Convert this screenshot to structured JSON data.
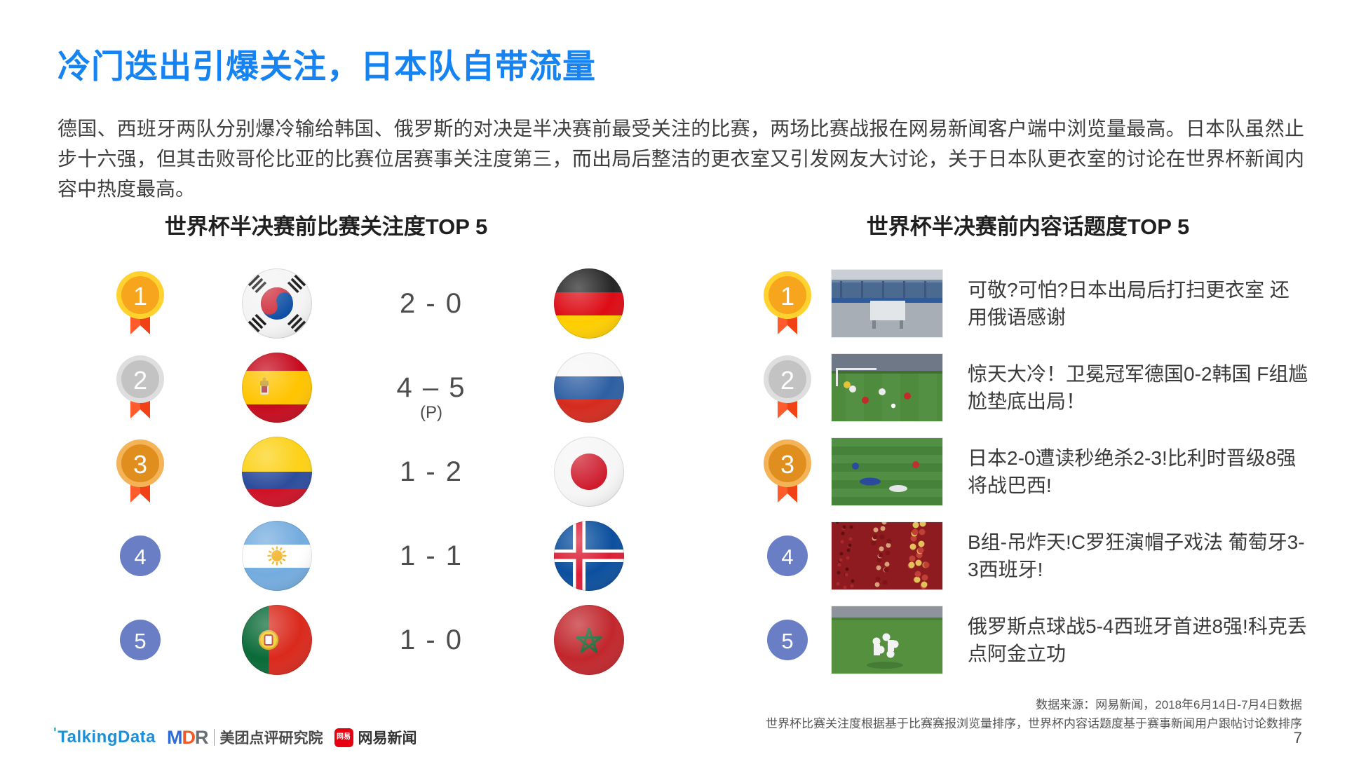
{
  "slide": {
    "title": "冷门迭出引爆关注，日本队自带流量",
    "intro": "德国、西班牙两队分别爆冷输给韩国、俄罗斯的对决是半决赛前最受关注的比赛，两场比赛战报在网易新闻客户端中浏览量最高。日本队虽然止步十六强，但其击败哥伦比亚的比赛位居赛事关注度第三，而出局后整洁的更衣室又引发网友大讨论，关于日本队更衣室的讨论在世界杯新闻内容中热度最高。",
    "page_number": "7"
  },
  "match_panel": {
    "header": "世界杯半决赛前比赛关注度TOP 5",
    "rows": [
      {
        "rank": "1",
        "medal": "gold",
        "team1": "south-korea",
        "score": "2 - 0",
        "note": "",
        "team2": "germany"
      },
      {
        "rank": "2",
        "medal": "silver",
        "team1": "spain",
        "score": "4 – 5",
        "note": "(P)",
        "team2": "russia"
      },
      {
        "rank": "3",
        "medal": "bronze",
        "team1": "colombia",
        "score": "1 - 2",
        "note": "",
        "team2": "japan"
      },
      {
        "rank": "4",
        "medal": "plain",
        "team1": "argentina",
        "score": "1 - 1",
        "note": "",
        "team2": "iceland"
      },
      {
        "rank": "5",
        "medal": "plain",
        "team1": "portugal",
        "score": "1 - 0",
        "note": "",
        "team2": "morocco"
      }
    ]
  },
  "topic_panel": {
    "header": "世界杯半决赛前内容话题度TOP 5",
    "rows": [
      {
        "rank": "1",
        "medal": "gold",
        "thumbnail": "japan-locker-room",
        "headline": "可敬?可怕?日本出局后打扫更衣室 还用俄语感谢"
      },
      {
        "rank": "2",
        "medal": "silver",
        "thumbnail": "germany-korea-match",
        "headline": "惊天大冷！卫冕冠军德国0-2韩国 F组尴尬垫底出局！"
      },
      {
        "rank": "3",
        "medal": "bronze",
        "thumbnail": "japan-belgium-match",
        "headline": "日本2-0遭读秒绝杀2-3!比利时晋级8强将战巴西!"
      },
      {
        "rank": "4",
        "medal": "plain",
        "thumbnail": "portugal-spain-fans",
        "headline": "B组-吊炸天!C罗狂演帽子戏法 葡萄牙3-3西班牙!"
      },
      {
        "rank": "5",
        "medal": "plain",
        "thumbnail": "russia-spain-match",
        "headline": "俄罗斯点球战5-4西班牙首进8强!科克丢点阿金立功"
      }
    ]
  },
  "footer": {
    "source_line1": "数据来源：网易新闻，2018年6月14日-7月4日数据",
    "source_line2": "世界杯比赛关注度根据基于比赛赛报浏览量排序，世界杯内容话题度基于赛事新闻用户跟帖讨论数排序",
    "logos": {
      "talkingdata": "TalkingData",
      "mdr": "MDR",
      "mdr_cn": "美团点评研究院",
      "netease_badge": "网易",
      "netease": "网易新闻"
    }
  },
  "colors": {
    "title_blue": "#1583F2",
    "medal_gold_ring": "#FFD22F",
    "medal_gold_fill": "#F7A51D",
    "medal_silver_ring": "#DEDEDE",
    "medal_silver_fill": "#C3C3C3",
    "medal_bronze_ring": "#F3B356",
    "medal_bronze_fill": "#E08E1E",
    "ribbon_red": "#FF5B2D",
    "ribbon_red_dark": "#F04214",
    "rank_circle_blue": "#6A7EC5",
    "netease_red": "#E60012"
  }
}
